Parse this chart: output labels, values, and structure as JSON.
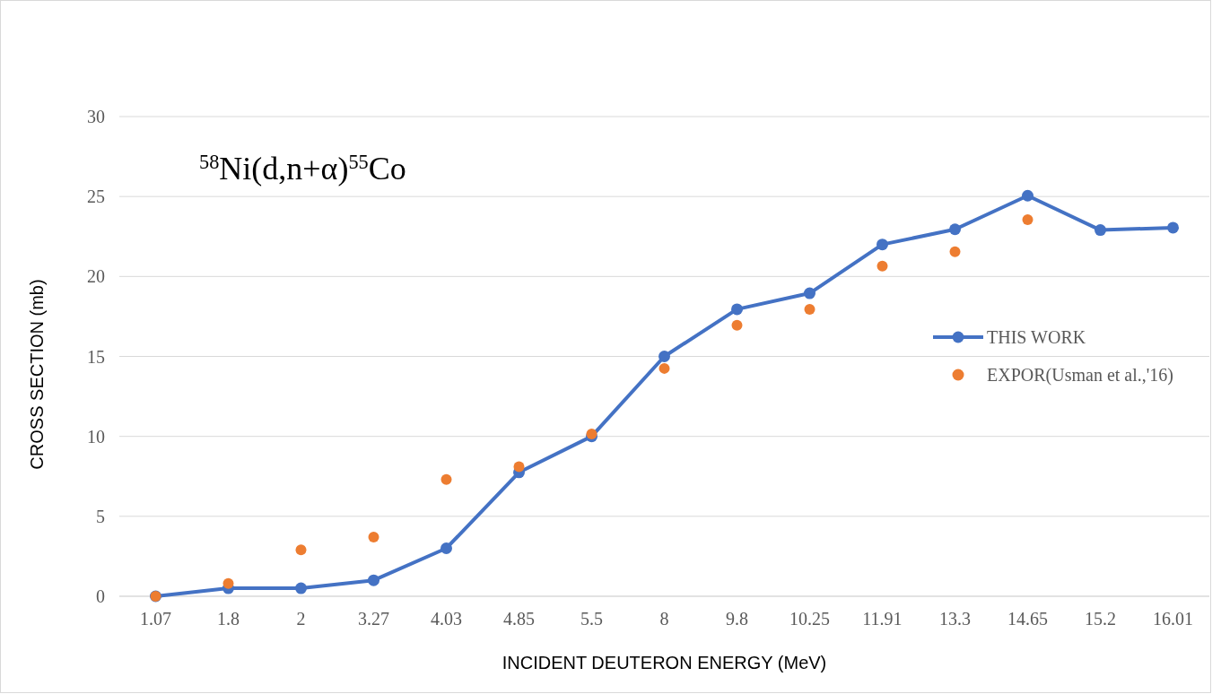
{
  "chart_data": {
    "type": "line",
    "title": "$^{58}$Ni(d,n+α)$^{55}$Co",
    "xlabel": "INCIDENT DEUTERON ENERGY  (MeV)",
    "ylabel": "CROSS SECTION (mb)",
    "categories": [
      "1.07",
      "1.8",
      "2",
      "3.27",
      "4.03",
      "4.85",
      "5.5",
      "8",
      "9.8",
      "10.25",
      "11.91",
      "13.3",
      "14.65",
      "15.2",
      "16.01"
    ],
    "series": [
      {
        "name": "THIS WORK",
        "color": "#4472c4",
        "marker": "circle",
        "line_style": "solid",
        "values": [
          0,
          0.5,
          0.5,
          1.0,
          3.0,
          7.75,
          10,
          15,
          17.95,
          18.95,
          22,
          22.95,
          25.05,
          22.9,
          23.05
        ]
      },
      {
        "name": "EXPOR(Usman et al.,'16)",
        "type": "scatter",
        "color": "#ed7d31",
        "marker": "circle",
        "values": [
          0,
          0.8,
          2.9,
          3.7,
          7.3,
          8.1,
          10.15,
          14.25,
          16.95,
          17.95,
          20.65,
          21.55,
          23.55,
          null,
          null
        ]
      }
    ],
    "ylim": [
      0,
      30
    ],
    "yticks": [
      0,
      5,
      10,
      15,
      20,
      25,
      30
    ],
    "grid": "y",
    "legend": "right"
  }
}
